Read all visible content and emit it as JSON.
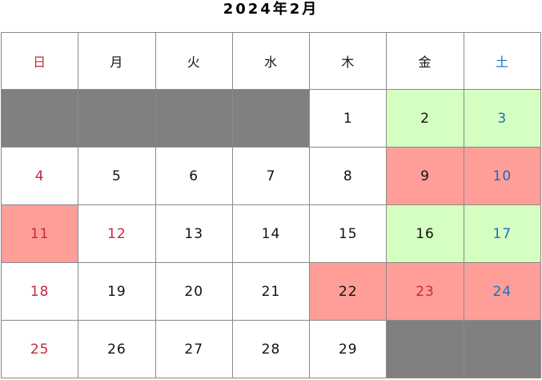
{
  "title": "2024年2月",
  "colors": {
    "empty": "#808080",
    "green": "#d4ffc0",
    "red": "#ff9e98",
    "white": "#ffffff",
    "sunday_text": "#c8283c",
    "saturday_text": "#1a6ec0",
    "normal_text": "#111111"
  },
  "weekdays": [
    {
      "label": "日",
      "type": "sun"
    },
    {
      "label": "月",
      "type": "normal"
    },
    {
      "label": "火",
      "type": "normal"
    },
    {
      "label": "水",
      "type": "normal"
    },
    {
      "label": "木",
      "type": "normal"
    },
    {
      "label": "金",
      "type": "normal"
    },
    {
      "label": "土",
      "type": "sat"
    }
  ],
  "weeks": [
    [
      {
        "day": "",
        "bg": "empty"
      },
      {
        "day": "",
        "bg": "empty"
      },
      {
        "day": "",
        "bg": "empty"
      },
      {
        "day": "",
        "bg": "empty"
      },
      {
        "day": "1",
        "bg": "white",
        "text": "normal"
      },
      {
        "day": "2",
        "bg": "green",
        "text": "normal"
      },
      {
        "day": "3",
        "bg": "green",
        "text": "sat"
      }
    ],
    [
      {
        "day": "4",
        "bg": "white",
        "text": "sun"
      },
      {
        "day": "5",
        "bg": "white",
        "text": "normal"
      },
      {
        "day": "6",
        "bg": "white",
        "text": "normal"
      },
      {
        "day": "7",
        "bg": "white",
        "text": "normal"
      },
      {
        "day": "8",
        "bg": "white",
        "text": "normal"
      },
      {
        "day": "9",
        "bg": "red",
        "text": "normal"
      },
      {
        "day": "10",
        "bg": "red",
        "text": "sat"
      }
    ],
    [
      {
        "day": "11",
        "bg": "red",
        "text": "sun"
      },
      {
        "day": "12",
        "bg": "white",
        "text": "sun"
      },
      {
        "day": "13",
        "bg": "white",
        "text": "normal"
      },
      {
        "day": "14",
        "bg": "white",
        "text": "normal"
      },
      {
        "day": "15",
        "bg": "white",
        "text": "normal"
      },
      {
        "day": "16",
        "bg": "green",
        "text": "normal"
      },
      {
        "day": "17",
        "bg": "green",
        "text": "sat"
      }
    ],
    [
      {
        "day": "18",
        "bg": "white",
        "text": "sun"
      },
      {
        "day": "19",
        "bg": "white",
        "text": "normal"
      },
      {
        "day": "20",
        "bg": "white",
        "text": "normal"
      },
      {
        "day": "21",
        "bg": "white",
        "text": "normal"
      },
      {
        "day": "22",
        "bg": "red",
        "text": "normal"
      },
      {
        "day": "23",
        "bg": "red",
        "text": "sun"
      },
      {
        "day": "24",
        "bg": "red",
        "text": "sat"
      }
    ],
    [
      {
        "day": "25",
        "bg": "white",
        "text": "sun"
      },
      {
        "day": "26",
        "bg": "white",
        "text": "normal"
      },
      {
        "day": "27",
        "bg": "white",
        "text": "normal"
      },
      {
        "day": "28",
        "bg": "white",
        "text": "normal"
      },
      {
        "day": "29",
        "bg": "white",
        "text": "normal"
      },
      {
        "day": "",
        "bg": "empty"
      },
      {
        "day": "",
        "bg": "empty"
      }
    ]
  ]
}
